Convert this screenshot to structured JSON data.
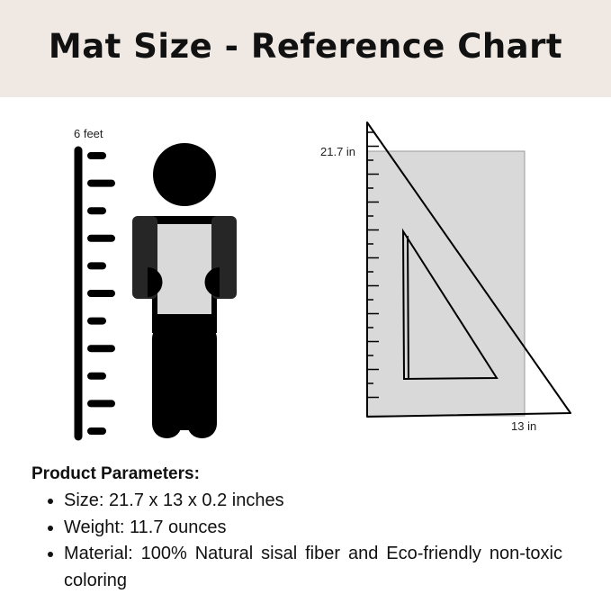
{
  "title": "Mat Size - Reference Chart",
  "height_label": "6 feet",
  "mat_height_label": "21.7 in",
  "mat_width_label": "13 in",
  "params": {
    "heading": "Product Parameters:",
    "items": [
      "Size: 21.7 x 13 x 0.2 inches",
      "Weight: 11.7 ounces",
      "Material: 100% Natural sisal fiber and Eco-friendly non-toxic coloring"
    ]
  },
  "colors": {
    "header_bg": "#efe8e3",
    "mat": "#d9d9d9",
    "figure": "#000000",
    "arms": "#262626"
  }
}
